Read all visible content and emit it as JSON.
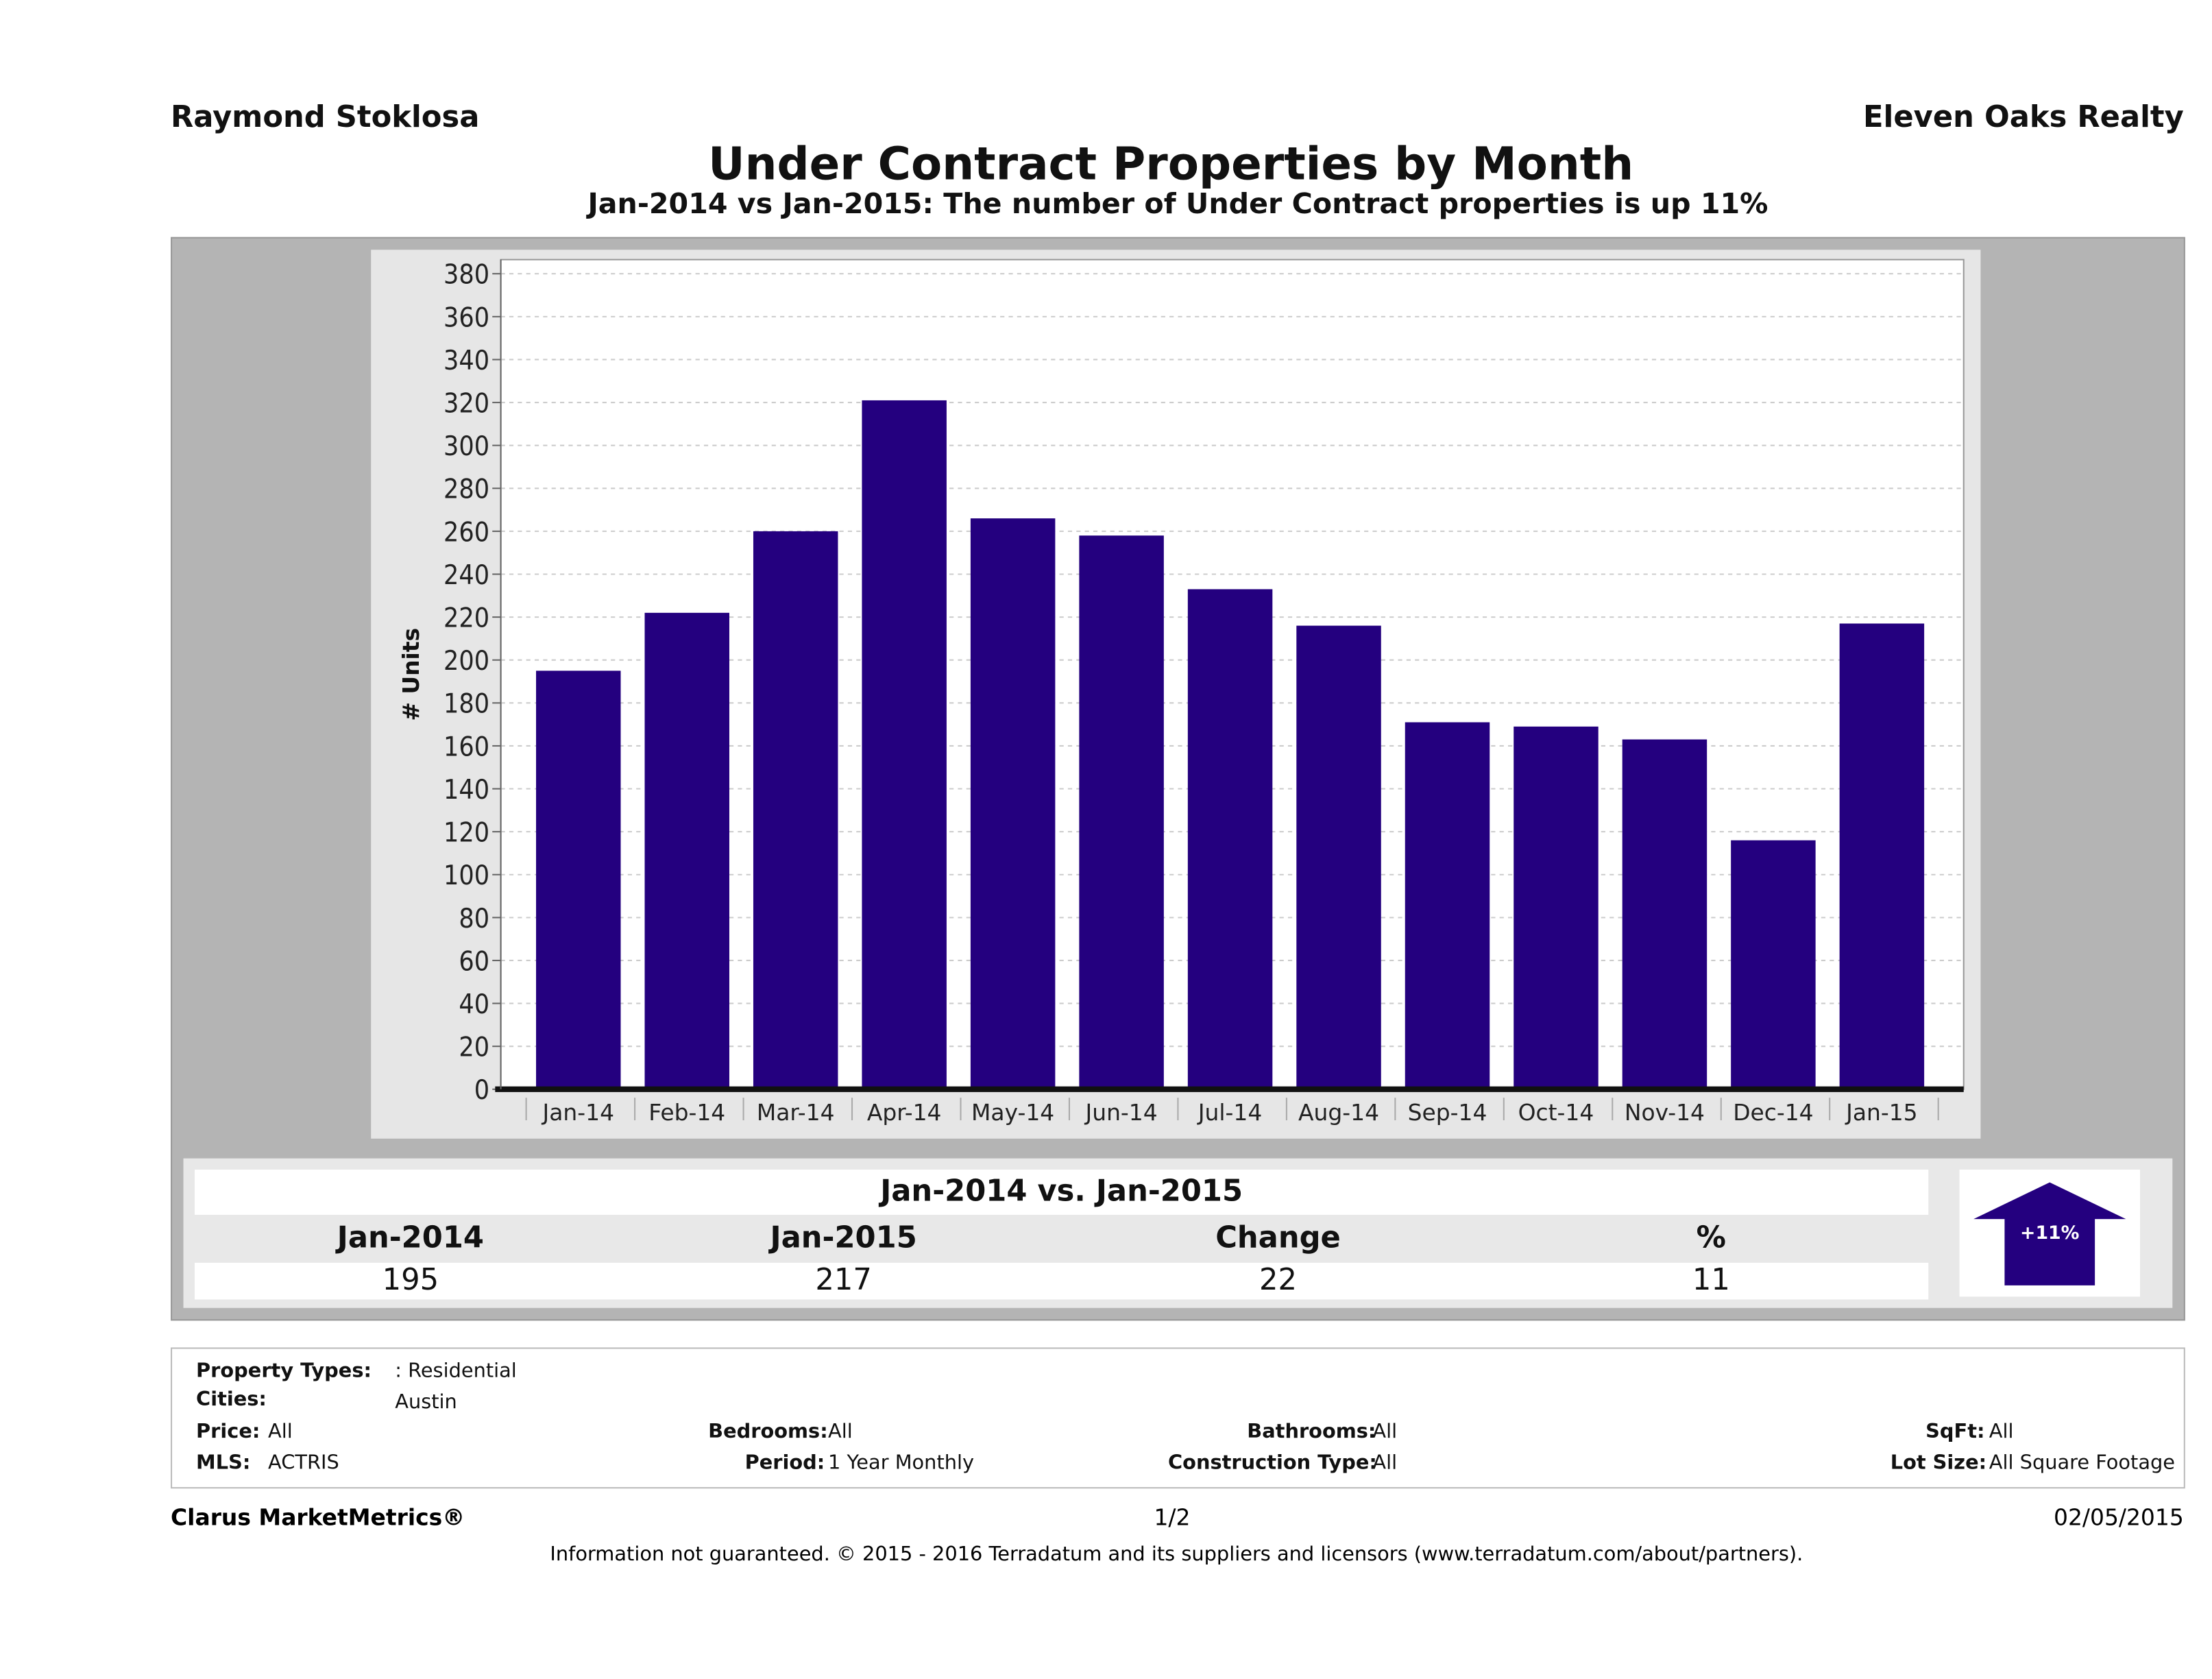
{
  "header": {
    "agent": "Raymond Stoklosa",
    "company": "Eleven Oaks Realty",
    "title": "Under Contract Properties by Month",
    "subtitle": "Jan-2014 vs Jan-2015: The number of Under Contract  properties is up 11%"
  },
  "chart_data": {
    "type": "bar",
    "title": "Under Contract Properties by Month",
    "ylabel": "# Units",
    "xlabel": "",
    "ylim": [
      0,
      380
    ],
    "yticks": [
      0,
      20,
      40,
      60,
      80,
      100,
      120,
      140,
      160,
      180,
      200,
      220,
      240,
      260,
      280,
      300,
      320,
      340,
      360,
      380
    ],
    "grid": true,
    "categories": [
      "Jan-14",
      "Feb-14",
      "Mar-14",
      "Apr-14",
      "May-14",
      "Jun-14",
      "Jul-14",
      "Aug-14",
      "Sep-14",
      "Oct-14",
      "Nov-14",
      "Dec-14",
      "Jan-15"
    ],
    "values": [
      195,
      222,
      260,
      321,
      266,
      258,
      233,
      216,
      171,
      169,
      163,
      116,
      217
    ],
    "bar_color": "#24007f"
  },
  "summary": {
    "heading": "Jan-2014 vs. Jan-2015",
    "columns": [
      "Jan-2014",
      "Jan-2015",
      "Change",
      "%"
    ],
    "values": [
      "195",
      "217",
      "22",
      "11"
    ],
    "badge": "+11%",
    "arrow_color": "#24007f"
  },
  "filters": {
    "property_types_label": "Property Types:",
    "property_types": ": Residential",
    "cities_label": "Cities:",
    "cities": "Austin",
    "price_label": "Price:",
    "price": "All",
    "bedrooms_label": "Bedrooms:",
    "bedrooms": "All",
    "bathrooms_label": "Bathrooms:",
    "bathrooms": "All",
    "sqft_label": "SqFt:",
    "sqft": "All",
    "mls_label": "MLS:",
    "mls": "ACTRIS",
    "period_label": "Period:",
    "period": "1 Year Monthly",
    "construction_label": "Construction Type:",
    "construction": "All",
    "lot_label": "Lot Size:",
    "lot": "All Square Footage"
  },
  "footer": {
    "brand": "Clarus MarketMetrics®",
    "page": "1/2",
    "date": "02/05/2015",
    "disclaimer": "Information not guaranteed. © 2015 - 2016 Terradatum and its suppliers and licensors (www.terradatum.com/about/partners)."
  }
}
